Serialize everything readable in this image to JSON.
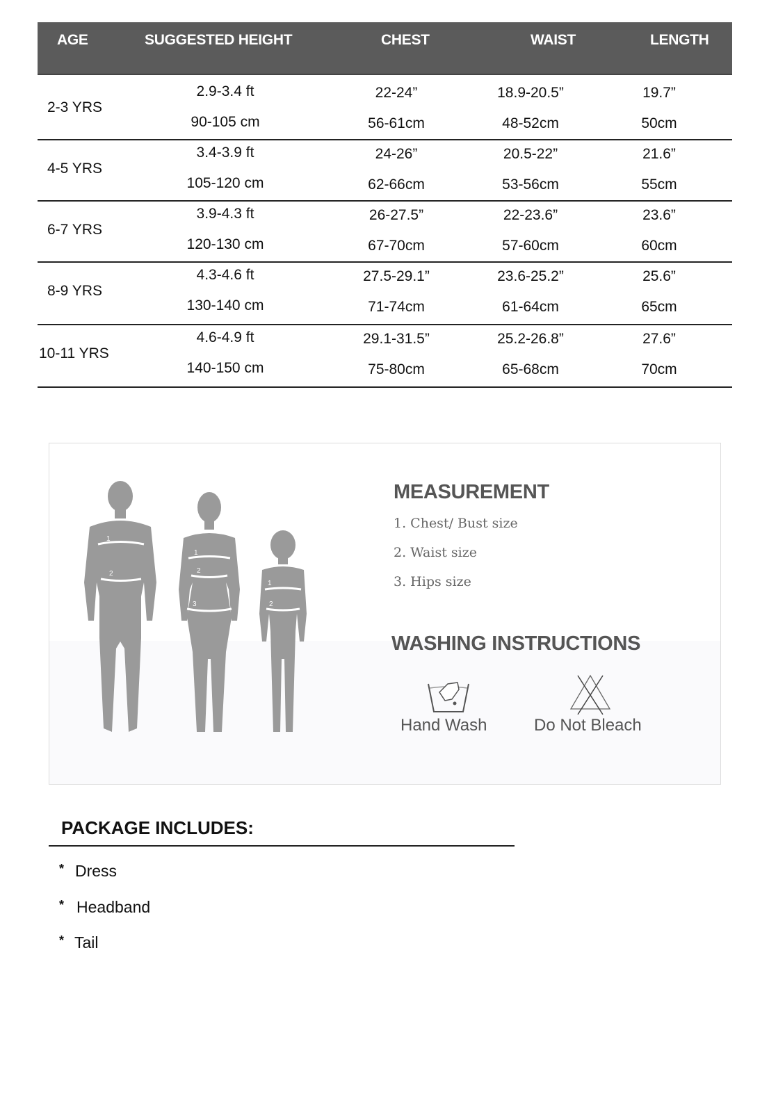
{
  "size_table": {
    "headers": [
      "AGE",
      "SUGGESTED HEIGHT",
      "CHEST",
      "WAIST",
      "LENGTH"
    ],
    "rows": [
      {
        "age": "2-3 YRS",
        "height_ft": "2.9-3.4 ft",
        "height_cm": "90-105 cm",
        "chest_in": "22-24”",
        "chest_cm": "56-61cm",
        "waist_in": "18.9-20.5”",
        "waist_cm": "48-52cm",
        "length_in": "19.7”",
        "length_cm": "50cm"
      },
      {
        "age": "4-5 YRS",
        "height_ft": "3.4-3.9 ft",
        "height_cm": "105-120 cm",
        "chest_in": "24-26”",
        "chest_cm": "62-66cm",
        "waist_in": "20.5-22”",
        "waist_cm": "53-56cm",
        "length_in": "21.6”",
        "length_cm": "55cm"
      },
      {
        "age": "6-7 YRS",
        "height_ft": "3.9-4.3 ft",
        "height_cm": "120-130 cm",
        "chest_in": "26-27.5”",
        "chest_cm": "67-70cm",
        "waist_in": "22-23.6”",
        "waist_cm": "57-60cm",
        "length_in": "23.6”",
        "length_cm": "60cm"
      },
      {
        "age": "8-9 YRS",
        "height_ft": "4.3-4.6 ft",
        "height_cm": "130-140 cm",
        "chest_in": "27.5-29.1”",
        "chest_cm": "71-74cm",
        "waist_in": "23.6-25.2”",
        "waist_cm": "61-64cm",
        "length_in": "25.6”",
        "length_cm": "65cm"
      },
      {
        "age": "10-11 YRS",
        "height_ft": "4.6-4.9 ft",
        "height_cm": "140-150 cm",
        "chest_in": "29.1-31.5”",
        "chest_cm": "75-80cm",
        "waist_in": "25.2-26.8”",
        "waist_cm": "65-68cm",
        "length_in": "27.6”",
        "length_cm": "70cm"
      }
    ]
  },
  "measurement": {
    "title": "MEASUREMENT",
    "items": [
      "1. Chest/ Bust size",
      "2. Waist size",
      "3. Hips size"
    ],
    "figure_labels": [
      "1",
      "2",
      "3"
    ]
  },
  "washing": {
    "title": "WASHING INSTRUCTIONS",
    "items": [
      {
        "label": "Hand Wash",
        "icon": "hand-wash-icon"
      },
      {
        "label": "Do Not Bleach",
        "icon": "do-not-bleach-icon"
      }
    ]
  },
  "package": {
    "title": "PACKAGE INCLUDES:",
    "bullet": "*",
    "items": [
      "Dress",
      "Headband",
      "Tail"
    ]
  },
  "colors": {
    "header_bg": "#5b5b5b",
    "heading_gray": "#555555",
    "figure_gray": "#9a9a9a"
  }
}
